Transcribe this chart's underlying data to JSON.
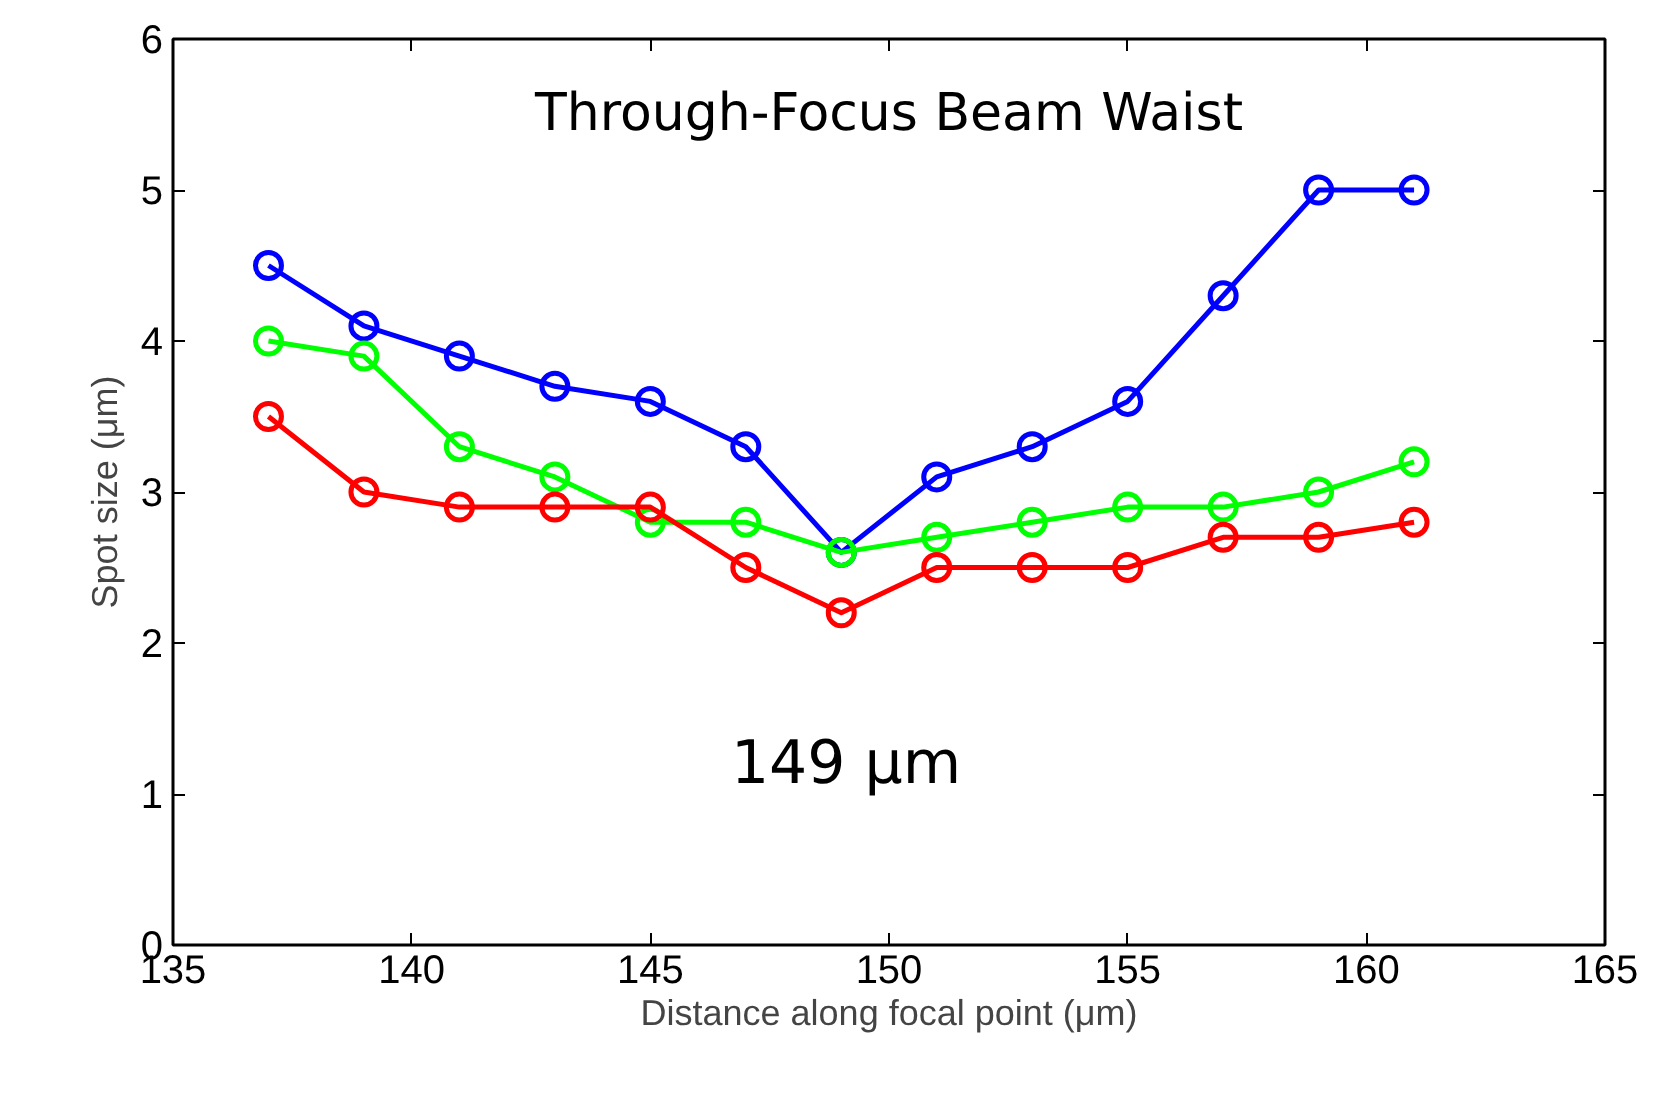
{
  "chart_data": {
    "type": "line",
    "title": "Through-Focus Beam Waist",
    "xlabel": "Distance along focal point (μm)",
    "ylabel": "Spot size (μm)",
    "annotations": [
      "149 μm"
    ],
    "x": [
      137,
      139,
      141,
      143,
      145,
      147,
      149,
      151,
      153,
      155,
      157,
      159,
      161
    ],
    "series": [
      {
        "color": "#0000ff",
        "values": [
          4.5,
          4.1,
          3.9,
          3.7,
          3.6,
          3.3,
          2.6,
          3.1,
          3.3,
          3.6,
          4.3,
          5.0,
          5.0
        ]
      },
      {
        "color": "#00ff00",
        "values": [
          4.0,
          3.9,
          3.3,
          3.1,
          2.8,
          2.8,
          2.6,
          2.7,
          2.8,
          2.9,
          2.9,
          3.0,
          3.2
        ]
      },
      {
        "color": "#ff0000",
        "values": [
          3.5,
          3.0,
          2.9,
          2.9,
          2.9,
          2.5,
          2.2,
          2.5,
          2.5,
          2.5,
          2.7,
          2.7,
          2.8
        ]
      }
    ],
    "xlim": [
      135,
      165
    ],
    "ylim": [
      0,
      6
    ],
    "xticks": [
      135,
      140,
      145,
      150,
      155,
      160,
      165
    ],
    "yticks": [
      0,
      1,
      2,
      3,
      4,
      5,
      6
    ],
    "grid": false,
    "marker": "circle",
    "line_style": "solid"
  }
}
